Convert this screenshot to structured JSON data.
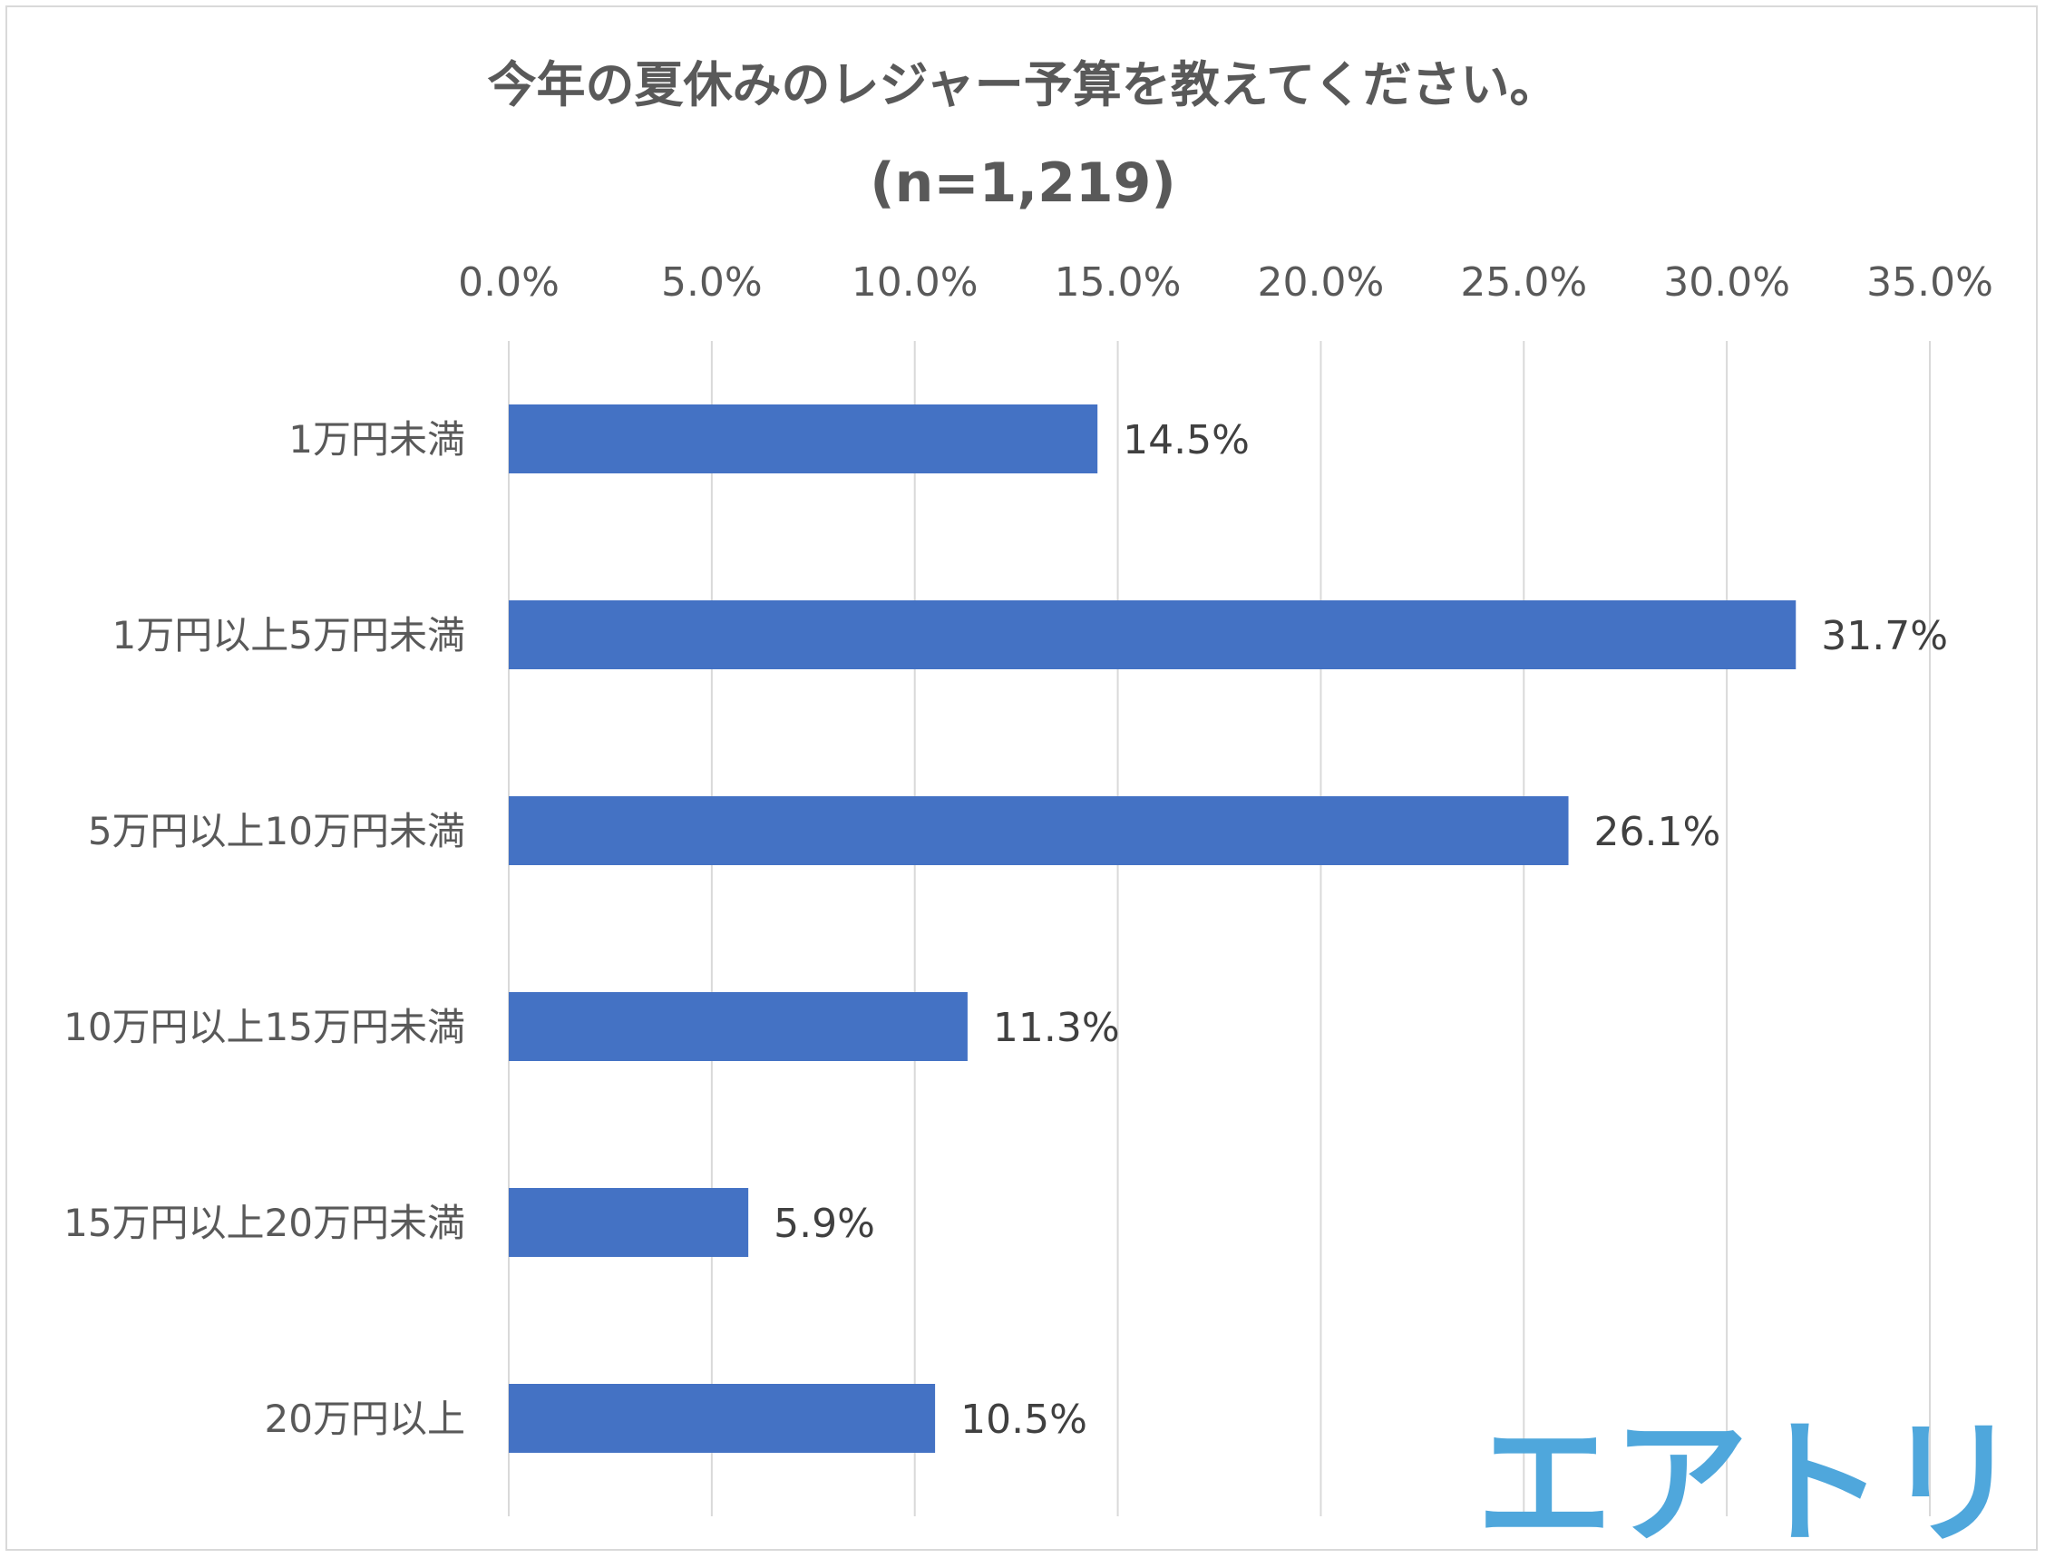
{
  "chart_data": {
    "type": "bar",
    "orientation": "horizontal",
    "title": "今年の夏休みのレジャー予算を教えてください。",
    "subtitle": "(n=1,219)",
    "categories": [
      "1万円未満",
      "1万円以上5万円未満",
      "5万円以上10万円未満",
      "10万円以上15万円未満",
      "15万円以上20万円未満",
      "20万円以上"
    ],
    "values": [
      14.5,
      31.7,
      26.1,
      11.3,
      5.9,
      10.5
    ],
    "data_labels": [
      "14.5%",
      "31.7%",
      "26.1%",
      "11.3%",
      "5.9%",
      "10.5%"
    ],
    "xlim": [
      0,
      35
    ],
    "xticks": [
      0,
      5,
      10,
      15,
      20,
      25,
      30,
      35
    ],
    "xtick_labels": [
      "0.0%",
      "5.0%",
      "10.0%",
      "15.0%",
      "20.0%",
      "25.0%",
      "30.0%",
      "35.0%"
    ],
    "x_axis_position": "top",
    "grid": true,
    "legend": "none",
    "colors": {
      "bar": "#4472c4",
      "grid": "#d9d9d9",
      "text": "#595959"
    }
  },
  "logo": {
    "text": "エアトリ",
    "color": "#4fa7dc"
  }
}
